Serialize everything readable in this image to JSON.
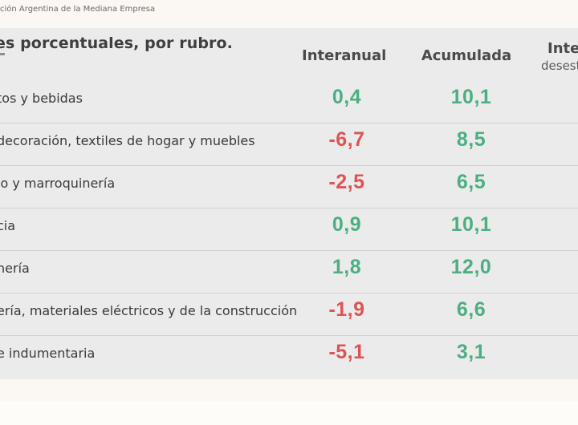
{
  "source": "ción Argentina de la Mediana Empresa",
  "title": "es porcentuales, por rubro.",
  "columns": {
    "interanual": "Interanual",
    "acumulada": "Acumulada",
    "third": "Inte",
    "third_sub": "desest"
  },
  "colors": {
    "positive": "#4caf82",
    "negative": "#dc5454",
    "panel": "#ebebeb"
  },
  "chart_data": {
    "type": "table",
    "title": "es porcentuales, por rubro.",
    "columns": [
      "Interanual",
      "Acumulada"
    ],
    "rows": [
      {
        "label": "tos y bebidas",
        "interanual": "0,4",
        "acumulada": "10,1"
      },
      {
        "label": "decoración, textiles de hogar y muebles",
        "interanual": "-6,7",
        "acumulada": "8,5"
      },
      {
        "label": "lo y marroquinería",
        "interanual": "-2,5",
        "acumulada": "6,5"
      },
      {
        "label": "cia",
        "interanual": "0,9",
        "acumulada": "10,1"
      },
      {
        "label": "nería",
        "interanual": "1,8",
        "acumulada": "12,0"
      },
      {
        "label": "ería, materiales eléctricos y de la construcción",
        "interanual": "-1,9",
        "acumulada": "6,6"
      },
      {
        "label": "e indumentaria",
        "interanual": "-5,1",
        "acumulada": "3,1"
      }
    ]
  }
}
